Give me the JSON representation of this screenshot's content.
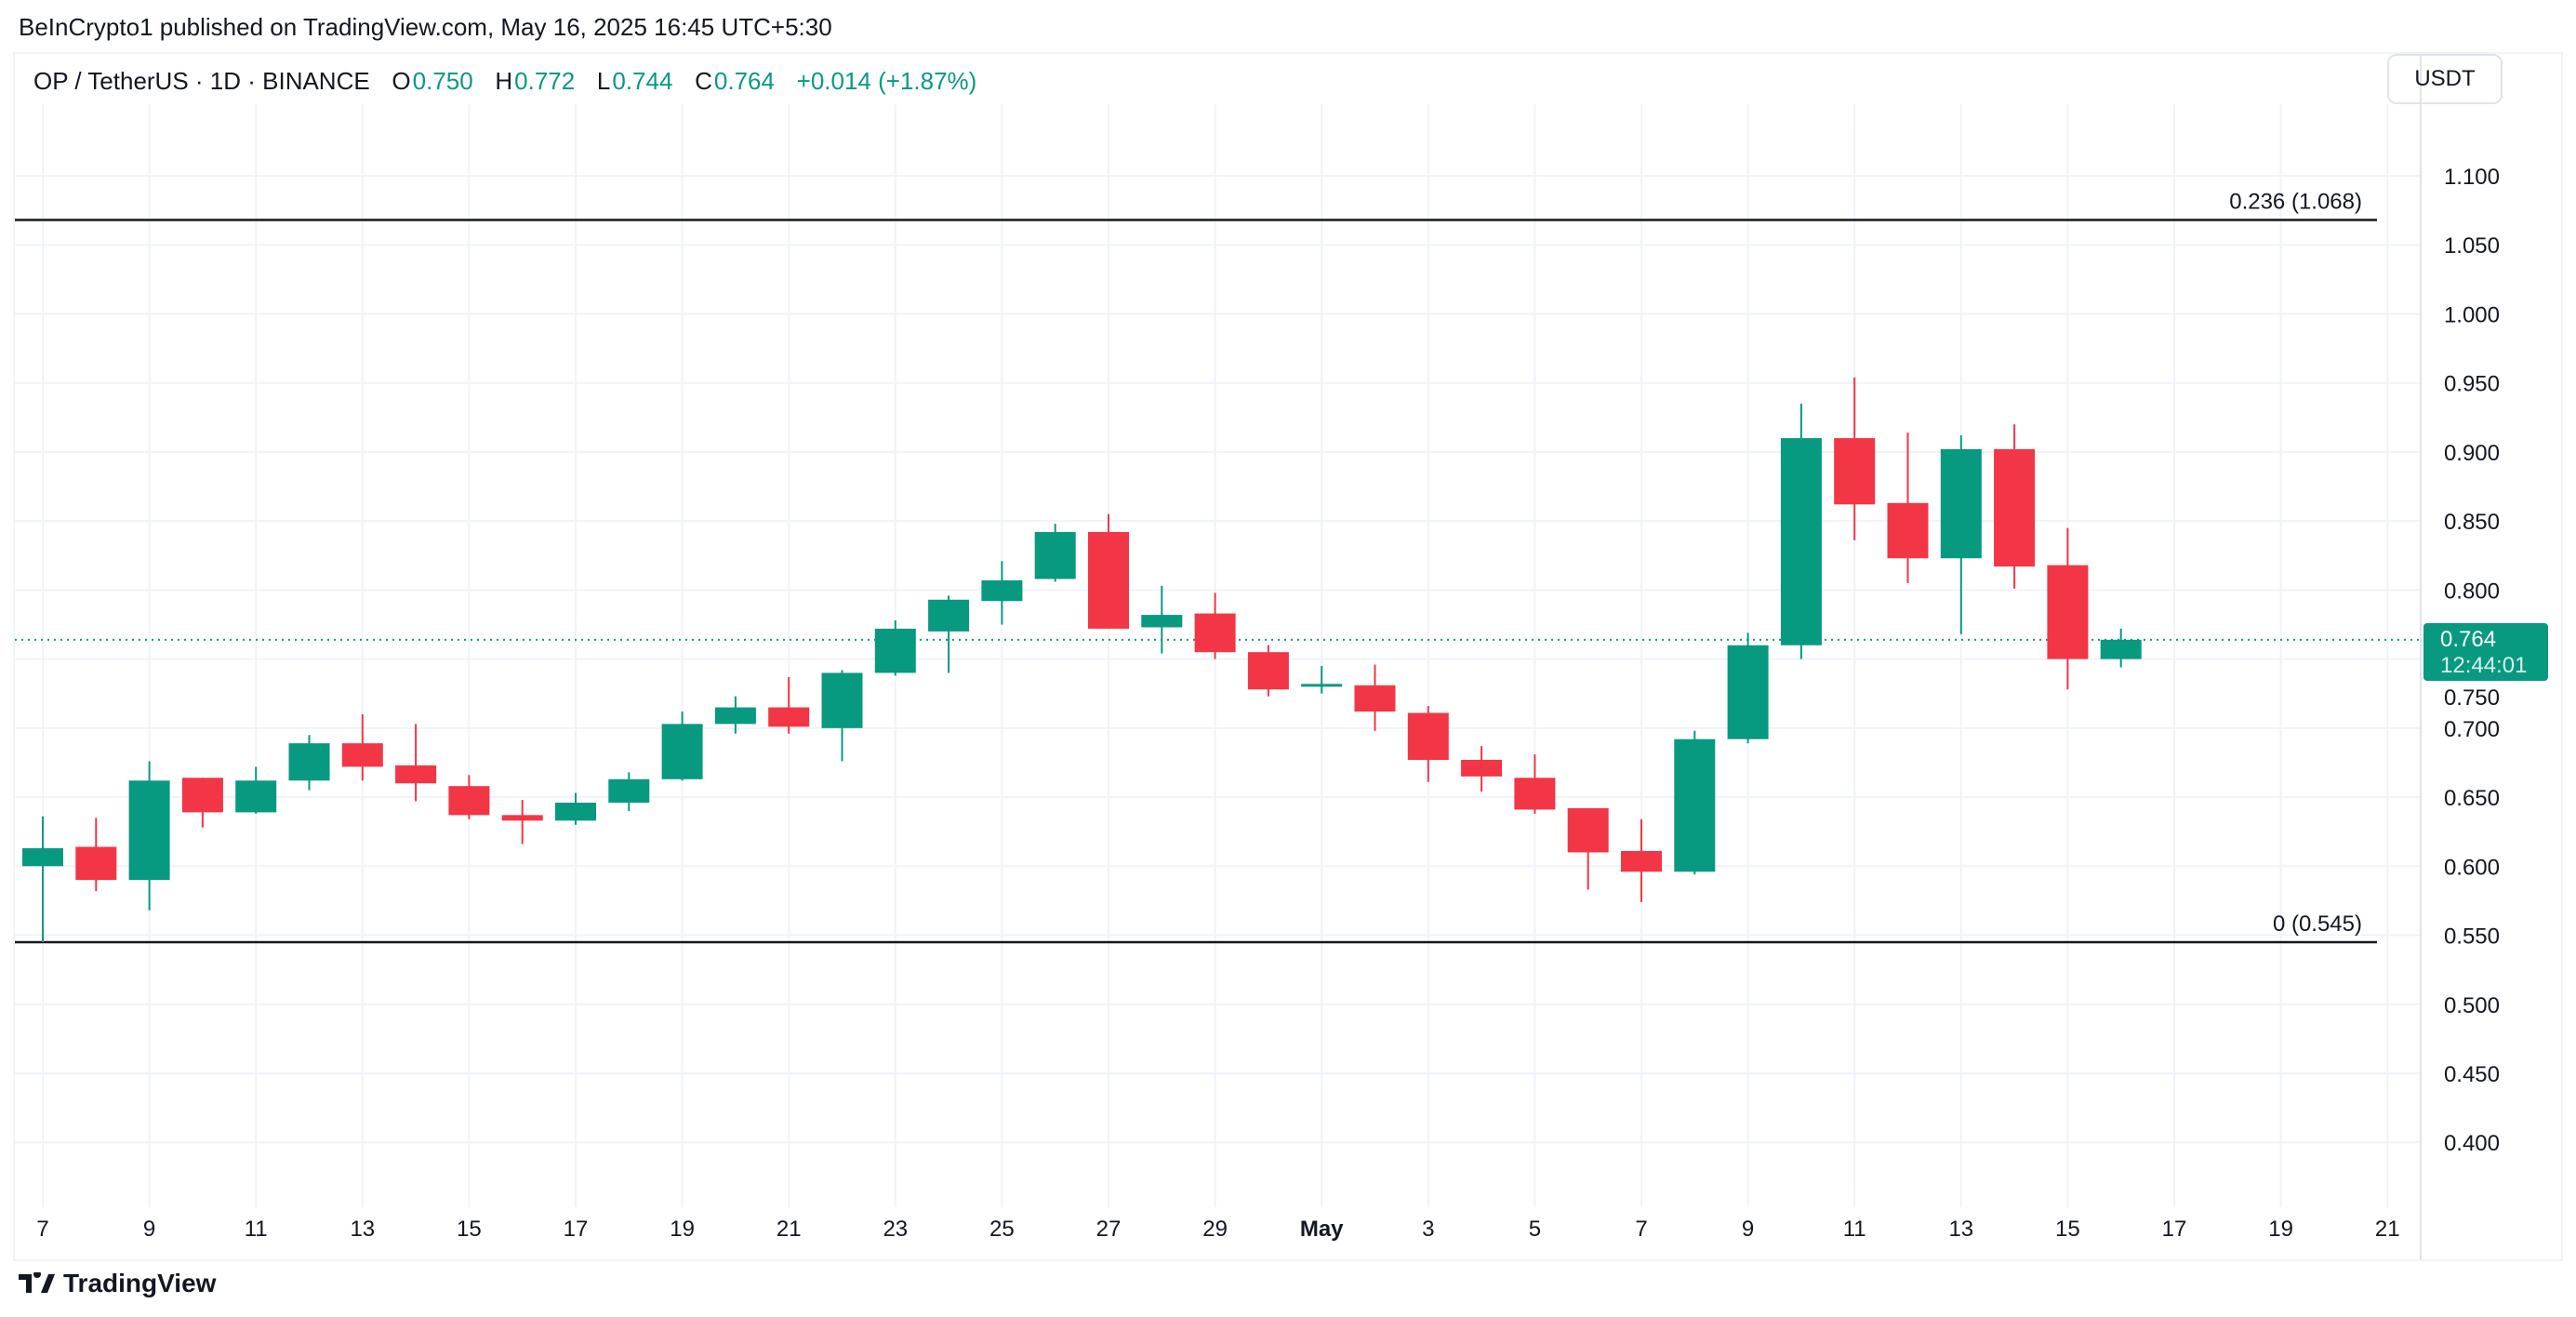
{
  "header": {
    "published": "BeInCrypto1 published on TradingView.com, May 16, 2025 16:45 UTC+5:30"
  },
  "legend": {
    "symbol": "OP / TetherUS · 1D · BINANCE",
    "o_label": "O",
    "o": "0.750",
    "h_label": "H",
    "h": "0.772",
    "l_label": "L",
    "l": "0.744",
    "c_label": "C",
    "c": "0.764",
    "change": "+0.014 (+1.87%)"
  },
  "currency_button": "USDT",
  "price_tag": {
    "price": "0.764",
    "countdown": "12:44:01"
  },
  "footer": {
    "brand": "TradingView"
  },
  "colors": {
    "up": "#089981",
    "down": "#f23645",
    "fib_line": "#131722"
  },
  "chart_data": {
    "type": "candlestick",
    "ylim": [
      0.36,
      1.15
    ],
    "grid": true,
    "y_ticks": [
      "1.100",
      "1.050",
      "1.000",
      "0.950",
      "0.900",
      "0.850",
      "0.800",
      "0.750",
      "0.700",
      "0.650",
      "0.600",
      "0.550",
      "0.500",
      "0.450",
      "0.400"
    ],
    "x_ticks": [
      "7",
      "9",
      "11",
      "13",
      "15",
      "17",
      "19",
      "21",
      "23",
      "25",
      "27",
      "29",
      "May",
      "3",
      "5",
      "7",
      "9",
      "11",
      "13",
      "15",
      "17",
      "19",
      "21"
    ],
    "horizontal_lines": [
      {
        "label": "0.236 (1.068)",
        "value": 1.068
      },
      {
        "label": "0 (0.545)",
        "value": 0.545
      }
    ],
    "current_price": 0.764,
    "candles": [
      {
        "date": "Apr 7",
        "o": 0.6,
        "h": 0.636,
        "l": 0.545,
        "c": 0.613
      },
      {
        "date": "Apr 8",
        "o": 0.614,
        "h": 0.635,
        "l": 0.582,
        "c": 0.59
      },
      {
        "date": "Apr 9",
        "o": 0.59,
        "h": 0.676,
        "l": 0.568,
        "c": 0.662
      },
      {
        "date": "Apr 10",
        "o": 0.664,
        "h": 0.664,
        "l": 0.628,
        "c": 0.639
      },
      {
        "date": "Apr 11",
        "o": 0.639,
        "h": 0.672,
        "l": 0.638,
        "c": 0.662
      },
      {
        "date": "Apr 12",
        "o": 0.662,
        "h": 0.695,
        "l": 0.655,
        "c": 0.689
      },
      {
        "date": "Apr 13",
        "o": 0.689,
        "h": 0.71,
        "l": 0.662,
        "c": 0.672
      },
      {
        "date": "Apr 14",
        "o": 0.673,
        "h": 0.703,
        "l": 0.647,
        "c": 0.66
      },
      {
        "date": "Apr 15",
        "o": 0.658,
        "h": 0.666,
        "l": 0.634,
        "c": 0.637
      },
      {
        "date": "Apr 16",
        "o": 0.637,
        "h": 0.648,
        "l": 0.616,
        "c": 0.633
      },
      {
        "date": "Apr 17",
        "o": 0.633,
        "h": 0.653,
        "l": 0.63,
        "c": 0.646
      },
      {
        "date": "Apr 18",
        "o": 0.646,
        "h": 0.668,
        "l": 0.64,
        "c": 0.663
      },
      {
        "date": "Apr 19",
        "o": 0.663,
        "h": 0.712,
        "l": 0.662,
        "c": 0.703
      },
      {
        "date": "Apr 20",
        "o": 0.703,
        "h": 0.723,
        "l": 0.696,
        "c": 0.715
      },
      {
        "date": "Apr 21",
        "o": 0.715,
        "h": 0.737,
        "l": 0.696,
        "c": 0.701
      },
      {
        "date": "Apr 22",
        "o": 0.7,
        "h": 0.742,
        "l": 0.676,
        "c": 0.74
      },
      {
        "date": "Apr 23",
        "o": 0.74,
        "h": 0.778,
        "l": 0.738,
        "c": 0.772
      },
      {
        "date": "Apr 24",
        "o": 0.77,
        "h": 0.796,
        "l": 0.74,
        "c": 0.793
      },
      {
        "date": "Apr 25",
        "o": 0.792,
        "h": 0.821,
        "l": 0.775,
        "c": 0.807
      },
      {
        "date": "Apr 26",
        "o": 0.808,
        "h": 0.848,
        "l": 0.806,
        "c": 0.842
      },
      {
        "date": "Apr 27",
        "o": 0.842,
        "h": 0.855,
        "l": 0.772,
        "c": 0.772
      },
      {
        "date": "Apr 28",
        "o": 0.773,
        "h": 0.803,
        "l": 0.754,
        "c": 0.782
      },
      {
        "date": "Apr 29",
        "o": 0.783,
        "h": 0.798,
        "l": 0.75,
        "c": 0.755
      },
      {
        "date": "Apr 30",
        "o": 0.755,
        "h": 0.76,
        "l": 0.723,
        "c": 0.728
      },
      {
        "date": "May 1",
        "o": 0.73,
        "h": 0.745,
        "l": 0.725,
        "c": 0.732
      },
      {
        "date": "May 2",
        "o": 0.731,
        "h": 0.746,
        "l": 0.698,
        "c": 0.712
      },
      {
        "date": "May 3",
        "o": 0.711,
        "h": 0.716,
        "l": 0.661,
        "c": 0.677
      },
      {
        "date": "May 4",
        "o": 0.677,
        "h": 0.687,
        "l": 0.654,
        "c": 0.665
      },
      {
        "date": "May 5",
        "o": 0.664,
        "h": 0.681,
        "l": 0.638,
        "c": 0.641
      },
      {
        "date": "May 6",
        "o": 0.642,
        "h": 0.642,
        "l": 0.583,
        "c": 0.61
      },
      {
        "date": "May 7",
        "o": 0.611,
        "h": 0.634,
        "l": 0.574,
        "c": 0.596
      },
      {
        "date": "May 8",
        "o": 0.596,
        "h": 0.698,
        "l": 0.594,
        "c": 0.692
      },
      {
        "date": "May 9",
        "o": 0.692,
        "h": 0.769,
        "l": 0.689,
        "c": 0.76
      },
      {
        "date": "May 10",
        "o": 0.76,
        "h": 0.935,
        "l": 0.75,
        "c": 0.91
      },
      {
        "date": "May 11",
        "o": 0.91,
        "h": 0.954,
        "l": 0.836,
        "c": 0.862
      },
      {
        "date": "May 12",
        "o": 0.863,
        "h": 0.914,
        "l": 0.805,
        "c": 0.823
      },
      {
        "date": "May 13",
        "o": 0.823,
        "h": 0.912,
        "l": 0.768,
        "c": 0.902
      },
      {
        "date": "May 14",
        "o": 0.902,
        "h": 0.92,
        "l": 0.801,
        "c": 0.817
      },
      {
        "date": "May 15",
        "o": 0.818,
        "h": 0.845,
        "l": 0.728,
        "c": 0.75
      },
      {
        "date": "May 16",
        "o": 0.75,
        "h": 0.772,
        "l": 0.744,
        "c": 0.764
      }
    ]
  }
}
